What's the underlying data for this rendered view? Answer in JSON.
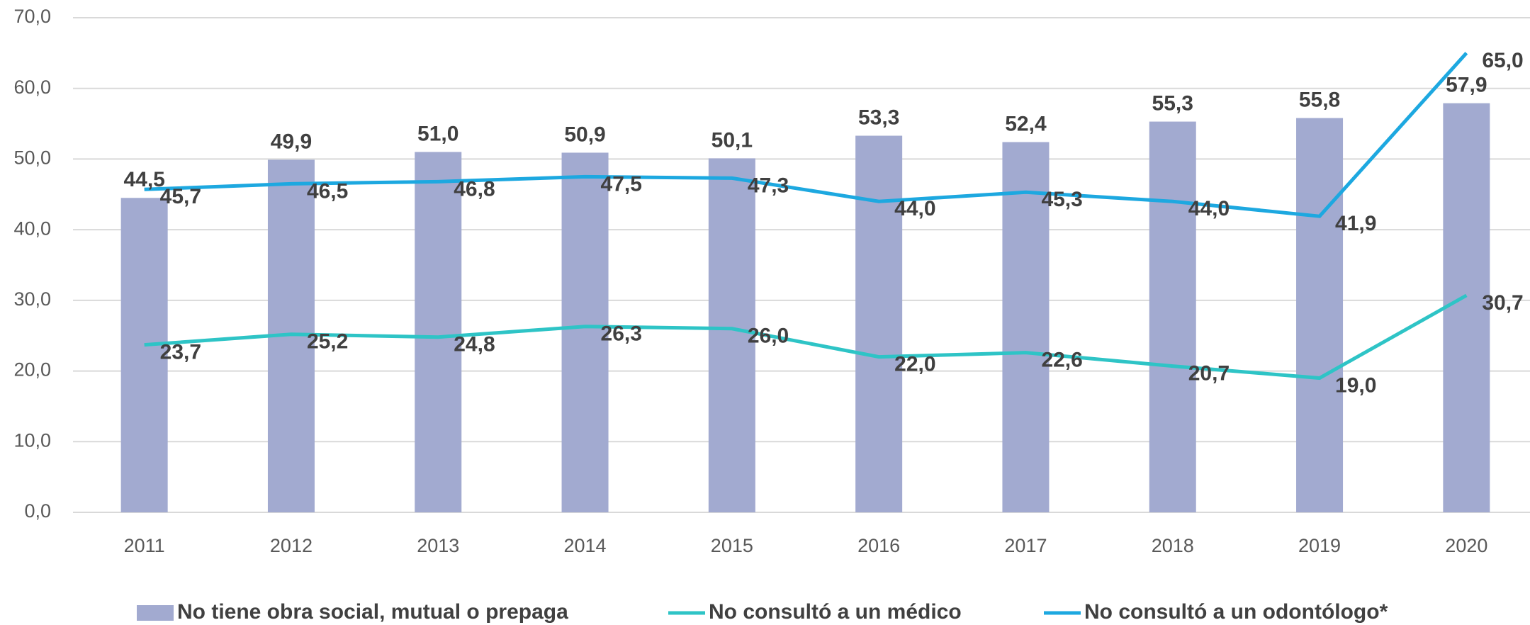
{
  "chart_data": {
    "type": "bar",
    "categories": [
      "2011",
      "2012",
      "2013",
      "2014",
      "2015",
      "2016",
      "2017",
      "2018",
      "2019",
      "2020"
    ],
    "series": [
      {
        "name": "No tiene obra social, mutual o prepaga",
        "type": "bar",
        "color": "#a2aad0",
        "values": [
          44.5,
          49.9,
          51.0,
          50.9,
          50.1,
          53.3,
          52.4,
          55.3,
          55.8,
          57.9
        ],
        "value_labels": [
          "44,5",
          "49,9",
          "51,0",
          "50,9",
          "50,1",
          "53,3",
          "52,4",
          "55,3",
          "55,8",
          "57,9"
        ]
      },
      {
        "name": "No consultó a un médico",
        "type": "line",
        "color": "#2ec4c6",
        "values": [
          23.7,
          25.2,
          24.8,
          26.3,
          26.0,
          22.0,
          22.6,
          20.7,
          19.0,
          30.7
        ],
        "value_labels": [
          "23,7",
          "25,2",
          "24,8",
          "26,3",
          "26,0",
          "22,0",
          "22,6",
          "20,7",
          "19,0",
          "30,7"
        ]
      },
      {
        "name": "No consultó a un odontólogo*",
        "type": "line",
        "color": "#1da8e0",
        "values": [
          45.7,
          46.5,
          46.8,
          47.5,
          47.3,
          44.0,
          45.3,
          44.0,
          41.9,
          65.0
        ],
        "value_labels": [
          "45,7",
          "46,5",
          "46,8",
          "47,5",
          "47,3",
          "44,0",
          "45,3",
          "44,0",
          "41,9",
          "65,0"
        ]
      }
    ],
    "ylim": [
      0,
      70
    ],
    "yticks": [
      {
        "value": 0,
        "label": "0,0"
      },
      {
        "value": 10,
        "label": "10,0"
      },
      {
        "value": 20,
        "label": "20,0"
      },
      {
        "value": 30,
        "label": "30,0"
      },
      {
        "value": 40,
        "label": "40,0"
      },
      {
        "value": 50,
        "label": "50,0"
      },
      {
        "value": 60,
        "label": "60,0"
      },
      {
        "value": 70,
        "label": "70,0"
      }
    ],
    "grid": true,
    "legend": "bottom"
  }
}
